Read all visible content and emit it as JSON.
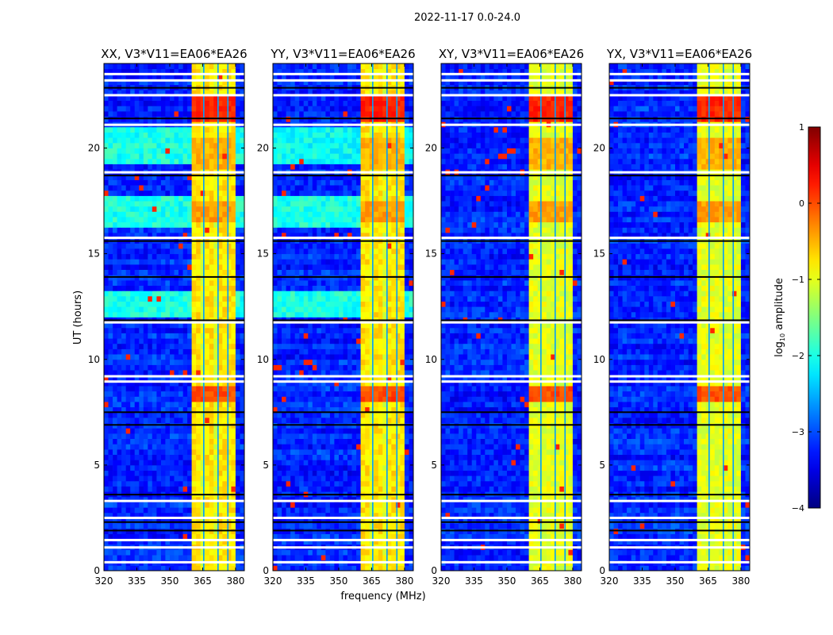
{
  "chart_data": {
    "type": "heatmap",
    "title": "2022-11-17 0.0-24.0",
    "xlabel": "frequency (MHz)",
    "ylabel": "UT (hours)",
    "xlim": [
      320,
      384
    ],
    "ylim": [
      0,
      24
    ],
    "xticks": [
      "320",
      "335",
      "350",
      "365",
      "380"
    ],
    "xtick_values": [
      320,
      335,
      350,
      365,
      380
    ],
    "yticks": [
      "0",
      "5",
      "10",
      "15",
      "20"
    ],
    "ytick_values": [
      0,
      5,
      10,
      15,
      20
    ],
    "colorbar": {
      "label_main": "log",
      "label_sub": "10",
      "label_rest": " amplitude",
      "range": [
        -4,
        1
      ],
      "ticks": [
        "1",
        "0",
        "−1",
        "−2",
        "−3",
        "−4"
      ],
      "tick_values": [
        1,
        0,
        -1,
        -2,
        -3,
        -4
      ],
      "colormap": "jet"
    },
    "model": {
      "background_log_amp": -3.2,
      "rfi_band_mhz": [
        360.5,
        380
      ],
      "rfi_band_log_amp": -1.0,
      "rfi_strong_subbands_mhz": [
        [
          361,
          364
        ],
        [
          367,
          371
        ],
        [
          373,
          376
        ],
        [
          377,
          380
        ]
      ],
      "rfi_gaps_mhz": [
        365.5,
        372,
        376.5
      ],
      "rfi_burst_ut": [
        [
          21.2,
          22.3,
          0.2
        ],
        [
          8.0,
          8.6,
          0.0
        ],
        [
          16.5,
          17.5,
          -0.4
        ],
        [
          19.0,
          20.5,
          -0.5
        ]
      ],
      "flagged_white_ut": [
        0.4,
        1.1,
        1.45,
        2.5,
        3.3,
        8.95,
        9.2,
        11.75,
        15.75,
        18.85,
        21.1,
        22.5,
        23.2,
        23.5
      ],
      "flagged_black_ut": [
        1.9,
        2.3,
        3.6,
        6.9,
        7.5,
        11.85,
        15.6,
        18.7,
        21.4,
        22.85,
        13.9
      ]
    },
    "panels": [
      {
        "title": "XX, V3*V11=EA06*EA26",
        "elevated_ut": [
          [
            19.2,
            20.9,
            -2.0
          ],
          [
            16.2,
            17.7,
            -2.0
          ],
          [
            12.0,
            13.2,
            -2.0
          ]
        ]
      },
      {
        "title": "YY, V3*V11=EA06*EA26",
        "elevated_ut": [
          [
            19.2,
            20.9,
            -2.1
          ],
          [
            16.2,
            17.7,
            -2.0
          ],
          [
            12.0,
            13.2,
            -2.0
          ]
        ]
      },
      {
        "title": "XY, V3*V11=EA06*EA26",
        "elevated_ut": []
      },
      {
        "title": "YX, V3*V11=EA06*EA26",
        "elevated_ut": []
      }
    ]
  }
}
